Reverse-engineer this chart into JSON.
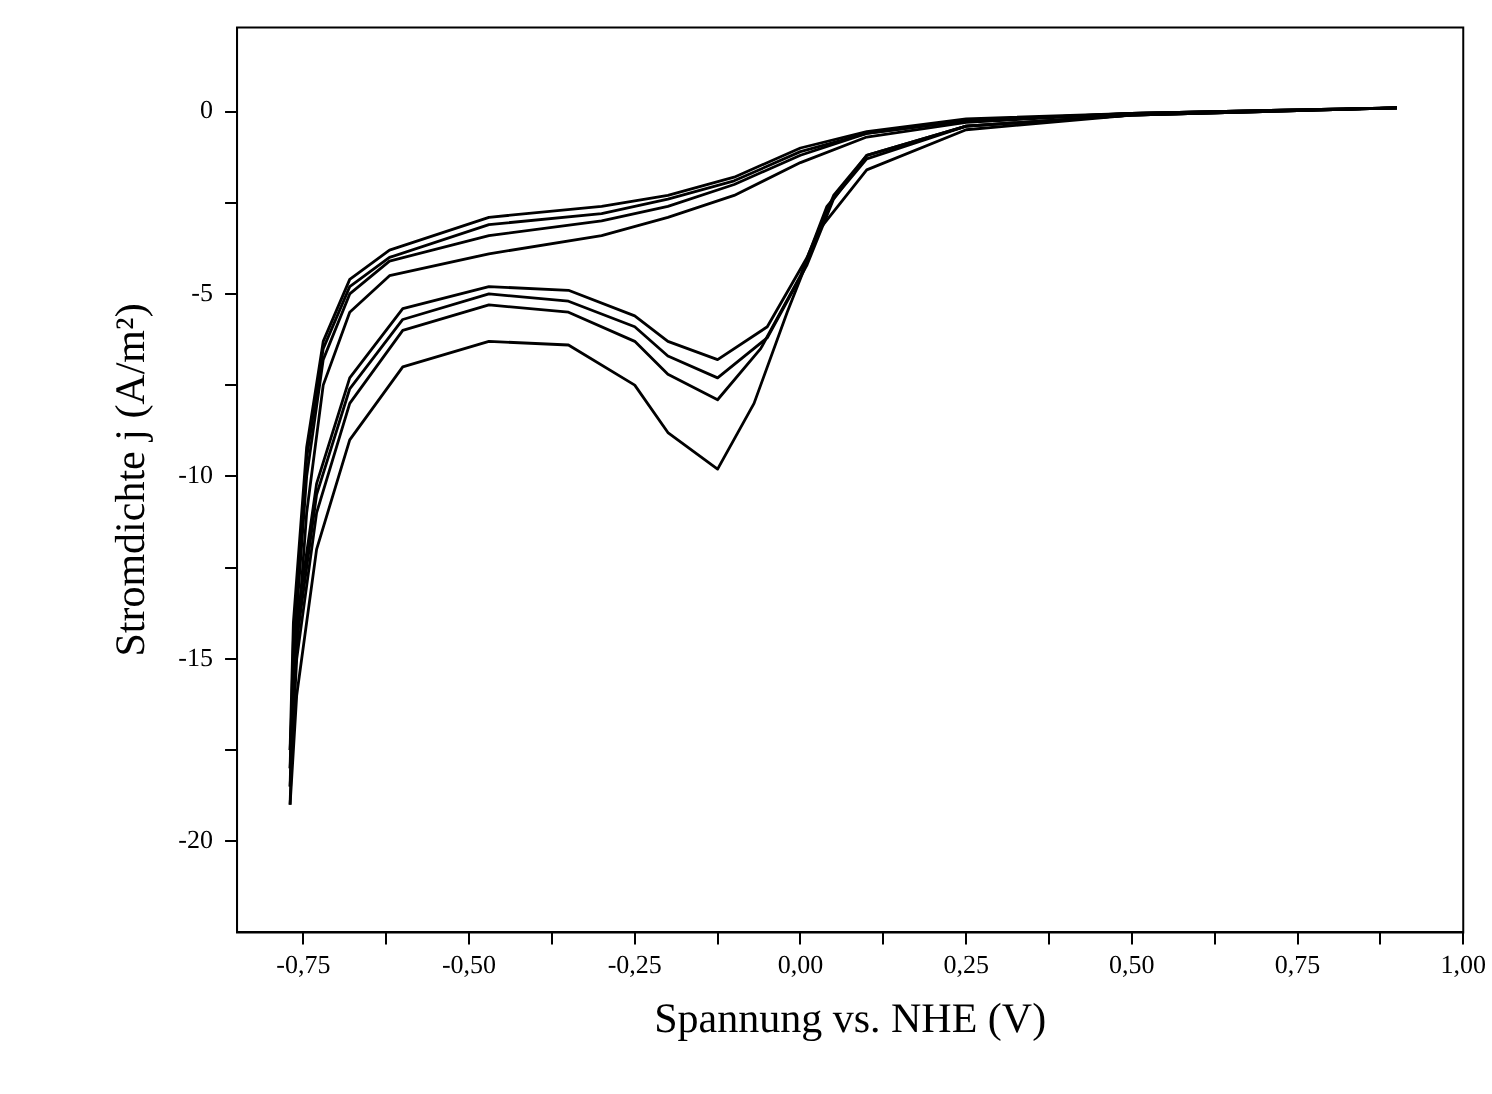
{
  "chart_data": {
    "type": "line",
    "xlabel": "Spannung vs. NHE (V)",
    "ylabel": "Stromdichte j (A/m²)",
    "marker": "none",
    "legend": false,
    "xlim": [
      -0.85,
      1.0
    ],
    "ylim": [
      -22.5,
      2.3
    ],
    "xticks": [
      {
        "value": -0.75,
        "label": "-0,75"
      },
      {
        "value": -0.625,
        "label": null
      },
      {
        "value": -0.5,
        "label": "-0,50"
      },
      {
        "value": -0.375,
        "label": null
      },
      {
        "value": -0.25,
        "label": "-0,25"
      },
      {
        "value": -0.125,
        "label": null
      },
      {
        "value": 0,
        "label": "0,00"
      },
      {
        "value": 0.125,
        "label": null
      },
      {
        "value": 0.25,
        "label": "0,25"
      },
      {
        "value": 0.375,
        "label": null
      },
      {
        "value": 0.5,
        "label": "0,50"
      },
      {
        "value": 0.625,
        "label": null
      },
      {
        "value": 0.75,
        "label": "0,75"
      },
      {
        "value": 0.875,
        "label": null
      },
      {
        "value": 1.0,
        "label": "1,00"
      }
    ],
    "yticks": [
      {
        "value": -20,
        "label": "-20"
      },
      {
        "value": -17.5,
        "label": null
      },
      {
        "value": -15,
        "label": "-15"
      },
      {
        "value": -12.5,
        "label": null
      },
      {
        "value": -10,
        "label": "-10"
      },
      {
        "value": -7.5,
        "label": null
      },
      {
        "value": -5,
        "label": "-5"
      },
      {
        "value": -2.5,
        "label": null
      },
      {
        "value": 0,
        "label": "0"
      }
    ],
    "series": [
      {
        "color": "#000000",
        "x": [
          -0.77,
          -0.76,
          -0.73,
          -0.68,
          -0.6,
          -0.47,
          -0.35,
          -0.25,
          -0.2,
          -0.125,
          -0.07,
          -0.02,
          0.03,
          0.1,
          0.25,
          0.5,
          0.9
        ],
        "values": [
          -19,
          -16,
          -12,
          -9,
          -7,
          -6.3,
          -6.4,
          -7.5,
          -8.8,
          -9.8,
          -8,
          -5.5,
          -3.2,
          -1.6,
          -0.5,
          -0.1,
          0.1
        ]
      },
      {
        "color": "#000000",
        "x": [
          -0.77,
          -0.765,
          -0.745,
          -0.72,
          -0.68,
          -0.62,
          -0.47,
          -0.3,
          -0.2,
          -0.1,
          0,
          0.1,
          0.25,
          0.5,
          0.9
        ],
        "values": [
          -19,
          -16,
          -11,
          -7.5,
          -5.5,
          -4.5,
          -3.9,
          -3.4,
          -2.9,
          -2.3,
          -1.4,
          -0.7,
          -0.3,
          -0.05,
          0.1
        ]
      },
      {
        "color": "#000000",
        "x": [
          -0.77,
          -0.76,
          -0.73,
          -0.68,
          -0.6,
          -0.47,
          -0.35,
          -0.25,
          -0.2,
          -0.125,
          -0.06,
          0,
          0.04,
          0.1,
          0.25,
          0.5,
          0.9
        ],
        "values": [
          -18.5,
          -15,
          -11,
          -8,
          -6,
          -5.3,
          -5.5,
          -6.3,
          -7.2,
          -7.9,
          -6.5,
          -4.5,
          -2.6,
          -1.3,
          -0.4,
          -0.1,
          0.1
        ]
      },
      {
        "color": "#000000",
        "x": [
          -0.77,
          -0.765,
          -0.745,
          -0.72,
          -0.68,
          -0.62,
          -0.47,
          -0.3,
          -0.2,
          -0.1,
          0,
          0.1,
          0.25,
          0.5,
          0.9
        ],
        "values": [
          -18.5,
          -15,
          -10,
          -6.8,
          -5,
          -4.1,
          -3.4,
          -3.0,
          -2.6,
          -2.0,
          -1.2,
          -0.6,
          -0.25,
          -0.05,
          0.1
        ]
      },
      {
        "color": "#000000",
        "x": [
          -0.77,
          -0.76,
          -0.73,
          -0.68,
          -0.6,
          -0.47,
          -0.35,
          -0.25,
          -0.2,
          -0.125,
          -0.05,
          0.01,
          0.05,
          0.1,
          0.25,
          0.5,
          0.9
        ],
        "values": [
          -18,
          -14.5,
          -10.5,
          -7.6,
          -5.7,
          -5.0,
          -5.2,
          -5.9,
          -6.7,
          -7.3,
          -6.2,
          -4.2,
          -2.4,
          -1.2,
          -0.4,
          -0.1,
          0.1
        ]
      },
      {
        "color": "#000000",
        "x": [
          -0.77,
          -0.765,
          -0.745,
          -0.72,
          -0.68,
          -0.62,
          -0.47,
          -0.3,
          -0.2,
          -0.1,
          0,
          0.1,
          0.25,
          0.5,
          0.9
        ],
        "values": [
          -18,
          -14.5,
          -9.5,
          -6.5,
          -4.8,
          -4.0,
          -3.1,
          -2.8,
          -2.4,
          -1.9,
          -1.1,
          -0.6,
          -0.25,
          -0.05,
          0.1
        ]
      },
      {
        "color": "#000000",
        "x": [
          -0.77,
          -0.76,
          -0.73,
          -0.68,
          -0.6,
          -0.47,
          -0.35,
          -0.25,
          -0.2,
          -0.125,
          -0.05,
          0.01,
          0.05,
          0.1,
          0.25,
          0.5,
          0.9
        ],
        "values": [
          -17.5,
          -14,
          -10.2,
          -7.3,
          -5.4,
          -4.8,
          -4.9,
          -5.6,
          -6.3,
          -6.8,
          -5.9,
          -4.0,
          -2.3,
          -1.2,
          -0.4,
          -0.1,
          0.1
        ]
      },
      {
        "color": "#000000",
        "x": [
          -0.77,
          -0.765,
          -0.745,
          -0.72,
          -0.68,
          -0.62,
          -0.47,
          -0.3,
          -0.2,
          -0.1,
          0,
          0.1,
          0.25,
          0.5,
          0.9
        ],
        "values": [
          -17.5,
          -14,
          -9.2,
          -6.3,
          -4.6,
          -3.8,
          -2.9,
          -2.6,
          -2.3,
          -1.8,
          -1.0,
          -0.55,
          -0.2,
          -0.05,
          0.1
        ]
      }
    ]
  }
}
